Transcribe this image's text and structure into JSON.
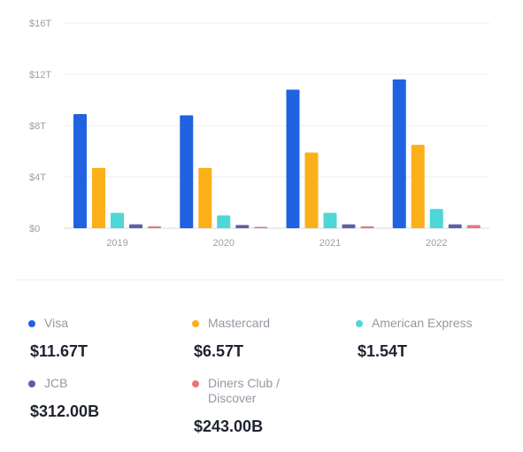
{
  "chart_data": {
    "type": "bar",
    "categories": [
      "2019",
      "2020",
      "2021",
      "2022"
    ],
    "ylim": [
      0,
      16
    ],
    "yticks": [
      "$0",
      "$4T",
      "$8T",
      "$12T",
      "$16T"
    ],
    "ytick_values": [
      0,
      4,
      8,
      12,
      16
    ],
    "grid": true,
    "legend_position": "bottom",
    "series": [
      {
        "name": "Visa",
        "color": "#2062e0",
        "values": [
          8.9,
          8.8,
          10.8,
          11.6
        ]
      },
      {
        "name": "Mastercard",
        "color": "#fbb01a",
        "values": [
          4.7,
          4.7,
          5.9,
          6.5
        ]
      },
      {
        "name": "American Express",
        "color": "#4fd6d6",
        "values": [
          1.2,
          1.0,
          1.2,
          1.5
        ]
      },
      {
        "name": "JCB",
        "color": "#5e5fa6",
        "values": [
          0.3,
          0.25,
          0.3,
          0.3
        ]
      },
      {
        "name": "Diners Club / Discover",
        "color": "#e8747c",
        "values": [
          0.15,
          0.1,
          0.15,
          0.24
        ]
      }
    ]
  },
  "legend": [
    {
      "label": "Visa",
      "value": "$11.67T",
      "color": "#2062e0"
    },
    {
      "label": "Mastercard",
      "value": "$6.57T",
      "color": "#fbb01a"
    },
    {
      "label": "American Express",
      "value": "$1.54T",
      "color": "#4fd6d6"
    },
    {
      "label": "JCB",
      "value": "$312.00B",
      "color": "#5e5fa6"
    },
    {
      "label": "Diners Club / Discover",
      "value": "$243.00B",
      "color": "#e8747c"
    }
  ]
}
